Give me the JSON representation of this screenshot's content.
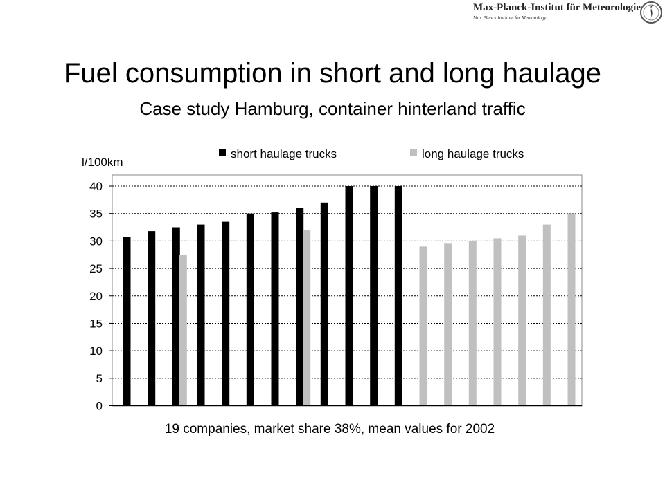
{
  "header": {
    "logo_title": "Max-Planck-Institut für Meteorologie",
    "logo_subtitle": "Max Planck Institute for Meteorology",
    "logo_icon": "mpi-emblem-icon"
  },
  "slide": {
    "title": "Fuel consumption in short and long haulage",
    "subtitle": "Case study Hamburg, container hinterland traffic"
  },
  "chart_data": {
    "type": "bar",
    "ylabel": "l/100km",
    "xlabel": "19 companies, market share 38%, mean values for 2002",
    "ylim": [
      0,
      40
    ],
    "yticks": [
      "0",
      "5",
      "10",
      "15",
      "20",
      "25",
      "30",
      "35",
      "40"
    ],
    "grid": "horizontal dotted",
    "legend_position": "top",
    "n_groups": 19,
    "series": [
      {
        "name": "short haulage trucks",
        "color": "#000000",
        "values": [
          30.8,
          31.8,
          32.5,
          33.0,
          33.5,
          35.0,
          35.2,
          36.0,
          37.0,
          40.0,
          40.0,
          40.0,
          null,
          null,
          null,
          null,
          null,
          null,
          null
        ]
      },
      {
        "name": "long haulage trucks",
        "color": "#c0c0c0",
        "values": [
          null,
          null,
          27.5,
          null,
          null,
          null,
          null,
          32.0,
          null,
          null,
          null,
          null,
          29.0,
          29.5,
          30.0,
          30.5,
          31.0,
          33.0,
          35.0
        ]
      }
    ]
  }
}
